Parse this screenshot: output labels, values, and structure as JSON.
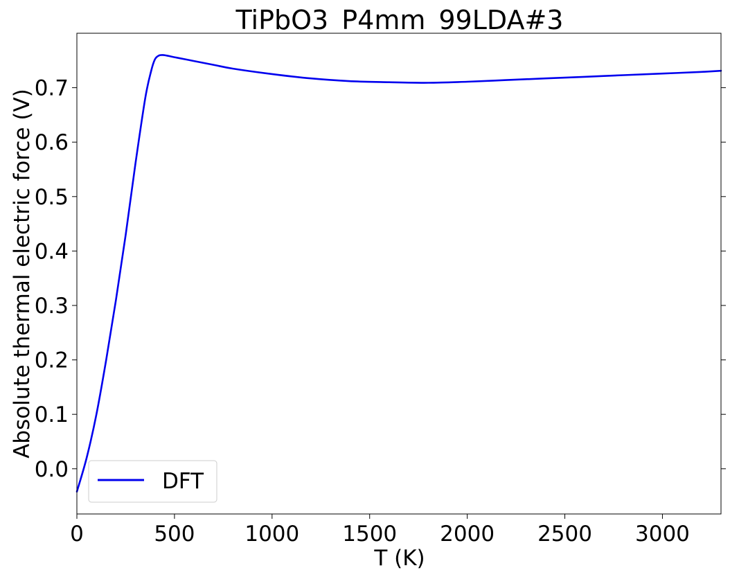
{
  "chart_data": {
    "type": "line",
    "title": "TiPbO3_P4mm_99LDA#3",
    "xlabel": "T (K)",
    "ylabel": "Absolute thermal electric force (V)",
    "xlim": [
      0,
      3300
    ],
    "ylim": [
      -0.083,
      0.8
    ],
    "xticks": [
      0,
      500,
      1000,
      1500,
      2000,
      2500,
      3000
    ],
    "xtick_labels": [
      "0",
      "500",
      "1000",
      "1500",
      "2000",
      "2500",
      "3000"
    ],
    "yticks": [
      0.0,
      0.1,
      0.2,
      0.3,
      0.4,
      0.5,
      0.6,
      0.7
    ],
    "ytick_labels": [
      "0.0",
      "0.1",
      "0.2",
      "0.3",
      "0.4",
      "0.5",
      "0.6",
      "0.7"
    ],
    "grid": false,
    "legend_position": "bottom-left",
    "series": [
      {
        "name": "DFT",
        "color": "#0000ee",
        "x": [
          0,
          50,
          100,
          150,
          200,
          250,
          300,
          350,
          380,
          400,
          420,
          440,
          460,
          500,
          600,
          700,
          800,
          1000,
          1200,
          1400,
          1600,
          1800,
          2000,
          2200,
          2400,
          2600,
          2800,
          3000,
          3200,
          3300
        ],
        "y": [
          -0.042,
          0.02,
          0.1,
          0.2,
          0.31,
          0.43,
          0.56,
          0.68,
          0.73,
          0.752,
          0.759,
          0.76,
          0.759,
          0.756,
          0.749,
          0.742,
          0.735,
          0.725,
          0.717,
          0.712,
          0.71,
          0.709,
          0.711,
          0.714,
          0.717,
          0.72,
          0.723,
          0.726,
          0.729,
          0.731
        ]
      }
    ]
  }
}
